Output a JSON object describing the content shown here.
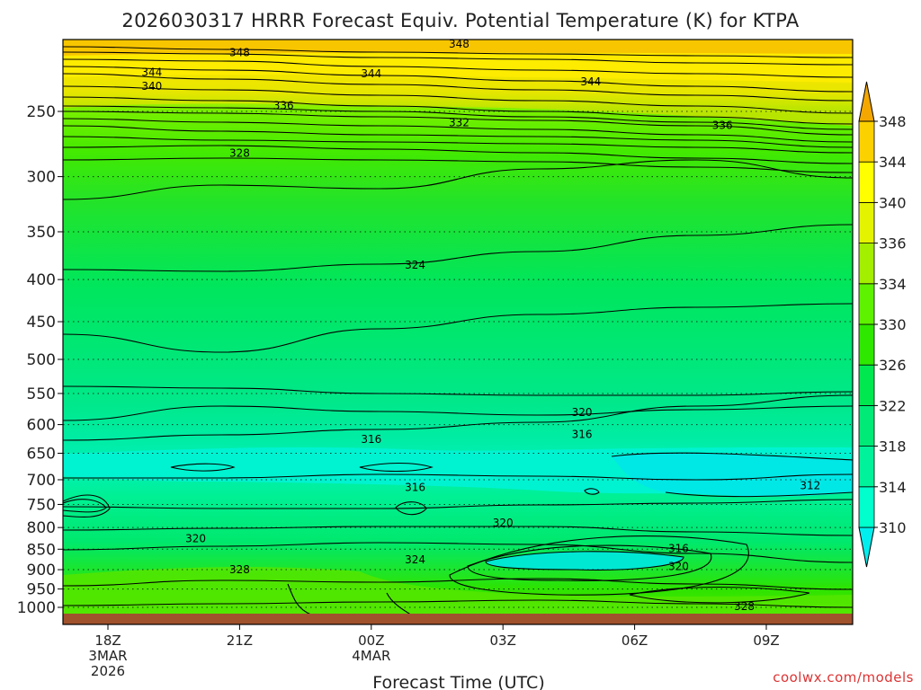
{
  "chart_data": {
    "type": "contour",
    "title": "2026030317 HRRR Forecast Equiv. Potential Temperature (K) for KTPA",
    "xlabel": "Forecast Time (UTC)",
    "ylabel": "",
    "credit": "coolwx.com/models",
    "y_axis": {
      "units": "hPa",
      "orientation": "pressure (inverted)",
      "tick_labels": [
        "250",
        "300",
        "350",
        "400",
        "450",
        "500",
        "550",
        "600",
        "650",
        "700",
        "750",
        "800",
        "850",
        "900",
        "950",
        "1000"
      ],
      "tick_values": [
        250,
        300,
        350,
        400,
        450,
        500,
        550,
        600,
        650,
        700,
        750,
        800,
        850,
        900,
        950,
        1000
      ]
    },
    "x_axis": {
      "tick_labels": [
        {
          "time": "18Z",
          "date": "3MAR",
          "year": "2026"
        },
        {
          "time": "21Z",
          "date": "",
          "year": ""
        },
        {
          "time": "00Z",
          "date": "4MAR",
          "year": ""
        },
        {
          "time": "03Z",
          "date": "",
          "year": ""
        },
        {
          "time": "06Z",
          "date": "",
          "year": ""
        },
        {
          "time": "09Z",
          "date": "",
          "year": ""
        }
      ],
      "tick_hours": [
        1,
        4,
        7,
        10,
        13,
        16
      ],
      "range_hours": [
        0,
        18
      ]
    },
    "colorbar": {
      "units": "K",
      "tick_labels": [
        "310",
        "314",
        "318",
        "322",
        "326",
        "330",
        "334",
        "336",
        "340",
        "344",
        "348"
      ],
      "levels": [
        310,
        314,
        318,
        322,
        326,
        330,
        334,
        336,
        340,
        344,
        348
      ],
      "colors": [
        "#00eeee",
        "#00ffcc",
        "#00f39a",
        "#00ea77",
        "#00e84f",
        "#2ee800",
        "#5ef200",
        "#a4ee00",
        "#e4f400",
        "#ffff00",
        "#fbd100",
        "#f4a700"
      ]
    },
    "contour_labels": [
      {
        "value": "348",
        "hour": 4.0,
        "p": 212
      },
      {
        "value": "348",
        "hour": 9.0,
        "p": 207
      },
      {
        "value": "344",
        "hour": 2.0,
        "p": 224
      },
      {
        "value": "344",
        "hour": 7.0,
        "p": 225
      },
      {
        "value": "344",
        "hour": 12.0,
        "p": 230
      },
      {
        "value": "340",
        "hour": 2.0,
        "p": 233
      },
      {
        "value": "336",
        "hour": 5.0,
        "p": 246
      },
      {
        "value": "336",
        "hour": 15.0,
        "p": 260
      },
      {
        "value": "332",
        "hour": 9.0,
        "p": 258
      },
      {
        "value": "328",
        "hour": 4.0,
        "p": 281
      },
      {
        "value": "324",
        "hour": 8.0,
        "p": 384
      },
      {
        "value": "320",
        "hour": 11.8,
        "p": 580
      },
      {
        "value": "316",
        "hour": 7.0,
        "p": 625
      },
      {
        "value": "316",
        "hour": 11.8,
        "p": 617
      },
      {
        "value": "316",
        "hour": 8.0,
        "p": 715
      },
      {
        "value": "316",
        "hour": 14.0,
        "p": 848
      },
      {
        "value": "312",
        "hour": 17.0,
        "p": 712
      },
      {
        "value": "320",
        "hour": 3.0,
        "p": 825
      },
      {
        "value": "320",
        "hour": 10.0,
        "p": 790
      },
      {
        "value": "320",
        "hour": 14.0,
        "p": 892
      },
      {
        "value": "324",
        "hour": 8.0,
        "p": 875
      },
      {
        "value": "328",
        "hour": 4.0,
        "p": 900
      },
      {
        "value": "328",
        "hour": 15.5,
        "p": 998
      }
    ]
  }
}
